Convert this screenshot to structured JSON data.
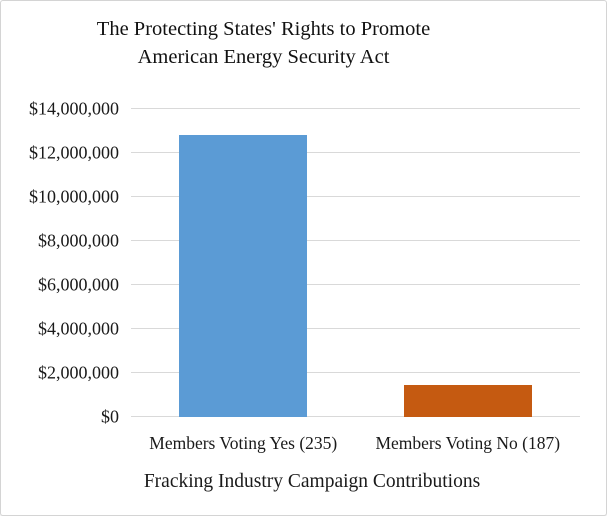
{
  "chart_data": {
    "type": "bar",
    "title": "The Protecting States' Rights to Promote American Energy Security Act",
    "title_lines": [
      "The Protecting States' Rights to Promote",
      "American Energy Security Act"
    ],
    "xlabel": "Fracking Industry Campaign Contributions",
    "ylabel": "",
    "categories": [
      "Members Voting Yes (235)",
      "Members Voting No (187)"
    ],
    "values": [
      12800000,
      1450000
    ],
    "bar_colors": [
      "#5B9BD5",
      "#C55A11"
    ],
    "ylim": [
      0,
      14000000
    ],
    "ytick_interval": 2000000,
    "yticks": [
      {
        "value": 0,
        "label": "$0"
      },
      {
        "value": 2000000,
        "label": "$2,000,000"
      },
      {
        "value": 4000000,
        "label": "$4,000,000"
      },
      {
        "value": 6000000,
        "label": "$6,000,000"
      },
      {
        "value": 8000000,
        "label": "$8,000,000"
      },
      {
        "value": 10000000,
        "label": "$10,000,000"
      },
      {
        "value": 12000000,
        "label": "$12,000,000"
      },
      {
        "value": 14000000,
        "label": "$14,000,000"
      }
    ],
    "grid": "horizontal",
    "legend": "none",
    "gridline_color": "#d9d9d9",
    "text_color": "#1a1a1a",
    "background_color": "#ffffff",
    "border_color": "#d4d4d4"
  }
}
